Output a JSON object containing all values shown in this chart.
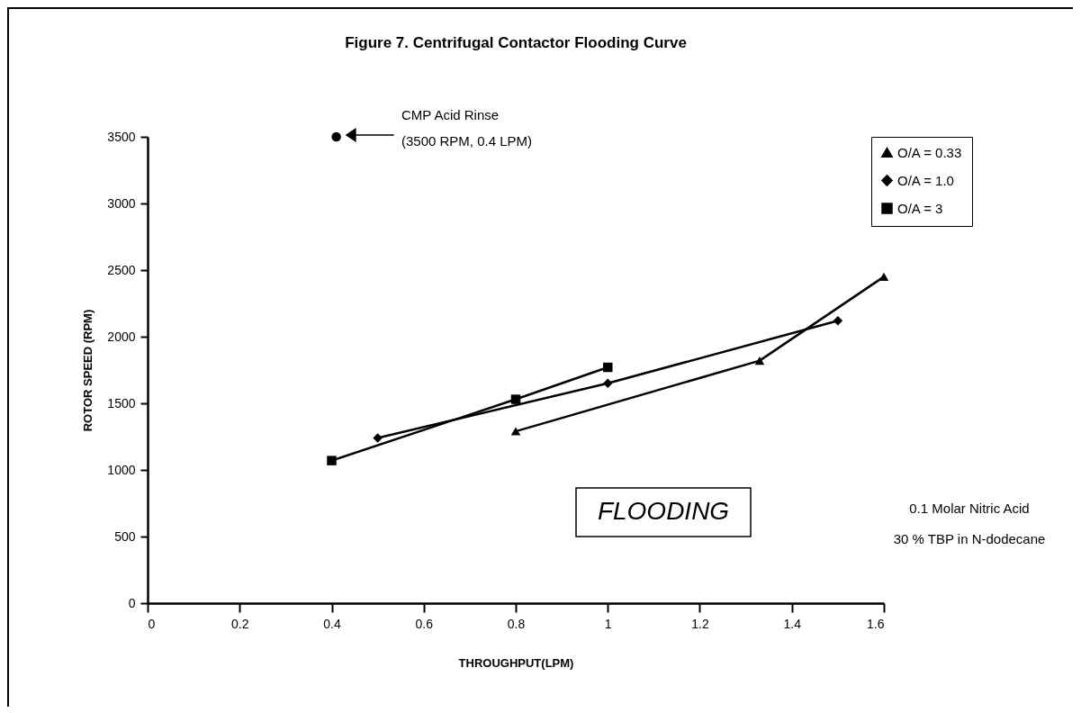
{
  "chart_data": {
    "type": "line",
    "title": "Figure 7.  Centrifugal Contactor Flooding Curve",
    "xlabel": "THROUGHPUT(LPM)",
    "ylabel": "ROTOR SPEED (RPM)",
    "xlim": [
      0,
      1.6
    ],
    "xticks": [
      0,
      0.2,
      0.4,
      0.6,
      0.8,
      1,
      1.2,
      1.4,
      1.6
    ],
    "ylim": [
      0,
      3500
    ],
    "yticks": [
      0,
      500,
      1000,
      1500,
      2000,
      2500,
      3000,
      3500
    ],
    "grid": false,
    "legend": "right",
    "line_style": "solid",
    "series": [
      {
        "name": "O/A = 0.33",
        "color": "#000000",
        "marker": "triangle",
        "x": [
          0.8,
          1.33,
          1.6
        ],
        "values": [
          1290,
          1820,
          2450
        ]
      },
      {
        "name": "O/A = 1.0",
        "color": "#000000",
        "marker": "diamond",
        "x": [
          0.5,
          1.0,
          1.5
        ],
        "values": [
          1240,
          1650,
          2120
        ]
      },
      {
        "name": "O/A = 3",
        "color": "#000000",
        "marker": "square",
        "x": [
          0.4,
          0.8,
          1.0
        ],
        "values": [
          1070,
          1530,
          1770
        ]
      },
      {
        "type": "scatter",
        "color": "#000000",
        "marker": "circle",
        "x": [
          0.41
        ],
        "values": [
          3500
        ]
      }
    ],
    "annotations": [
      "CMP  Acid Rinse\n (3500 RPM, 0.4 LPM)",
      "0.1 Molar Nitric Acid",
      "30 % TBP in N-dodecane",
      "FLOODING"
    ]
  }
}
